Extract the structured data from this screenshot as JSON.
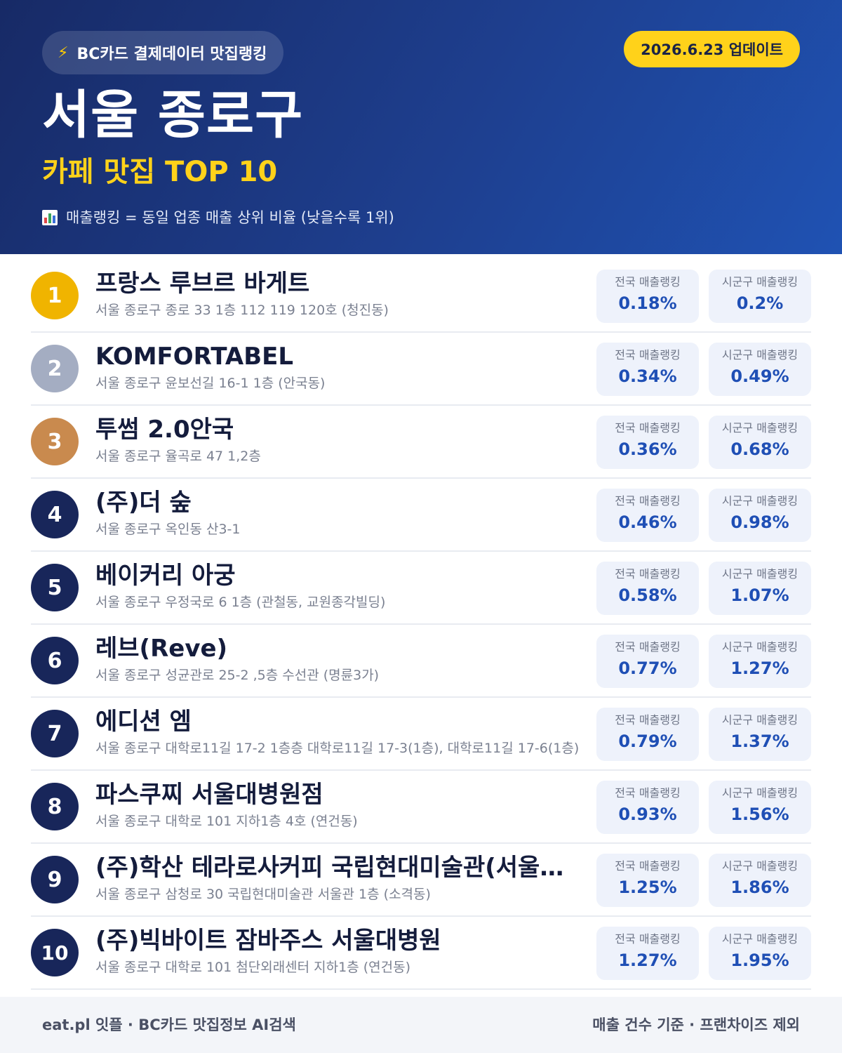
{
  "header": {
    "source_badge": "BC카드 결제데이터 맛집랭킹",
    "source_icon": "lightning-bolt-icon",
    "update_badge": "2026.6.23 업데이트",
    "title": "서울 종로구",
    "subtitle": "카페 맛집 TOP 10",
    "legend_icon": "bar-chart-icon",
    "legend": "매출랭킹 = 동일 업종 매출 상위 비율 (낮을수록 1위)"
  },
  "labels": {
    "national": "전국 매출랭킹",
    "local": "시군구 매출랭킹"
  },
  "colors": {
    "gold": "#f0b400",
    "silver": "#a4adc2",
    "bronze": "#c98a4e",
    "navy": "#18265a",
    "accent_yellow": "#ffd21a",
    "value_blue": "#1f4fb5"
  },
  "items": [
    {
      "rank": "1",
      "name": "프랑스 루브르 바게트",
      "address": "서울 종로구 종로 33 1층 112 119 120호 (청진동)",
      "national": "0.18%",
      "local": "0.2%"
    },
    {
      "rank": "2",
      "name": "KOMFORTABEL",
      "address": "서울 종로구 윤보선길 16-1 1층 (안국동)",
      "national": "0.34%",
      "local": "0.49%"
    },
    {
      "rank": "3",
      "name": "투썸 2.0안국",
      "address": "서울 종로구 율곡로 47 1,2층",
      "national": "0.36%",
      "local": "0.68%"
    },
    {
      "rank": "4",
      "name": "(주)더 숲",
      "address": "서울 종로구 옥인동 산3-1",
      "national": "0.46%",
      "local": "0.98%"
    },
    {
      "rank": "5",
      "name": "베이커리 아궁",
      "address": "서울 종로구 우정국로 6 1층 (관철동, 교원종각빌딩)",
      "national": "0.58%",
      "local": "1.07%"
    },
    {
      "rank": "6",
      "name": "레브(Reve)",
      "address": "서울 종로구 성균관로 25-2 ,5층 수선관 (명륜3가)",
      "national": "0.77%",
      "local": "1.27%"
    },
    {
      "rank": "7",
      "name": "에디션 엠",
      "address": "서울 종로구 대학로11길 17-2 1층층 대학로11길 17-3(1층), 대학로11길 17-6(1층)",
      "national": "0.79%",
      "local": "1.37%"
    },
    {
      "rank": "8",
      "name": "파스쿠찌 서울대병원점",
      "address": "서울 종로구 대학로 101 지하1층 4호 (연건동)",
      "national": "0.93%",
      "local": "1.56%"
    },
    {
      "rank": "9",
      "name": "(주)학산 테라로사커피 국립현대미술관(서울관…",
      "address": "서울 종로구 삼청로 30 국립현대미술관 서울관 1층 (소격동)",
      "national": "1.25%",
      "local": "1.86%"
    },
    {
      "rank": "10",
      "name": "(주)빅바이트 잠바주스 서울대병원",
      "address": "서울 종로구 대학로 101 첨단외래센터 지하1층 (연건동)",
      "national": "1.27%",
      "local": "1.95%"
    }
  ],
  "footer": {
    "left": "eat.pl 잇플 · BC카드 맛집정보 AI검색",
    "right": "매출 건수 기준 · 프랜차이즈 제외"
  }
}
